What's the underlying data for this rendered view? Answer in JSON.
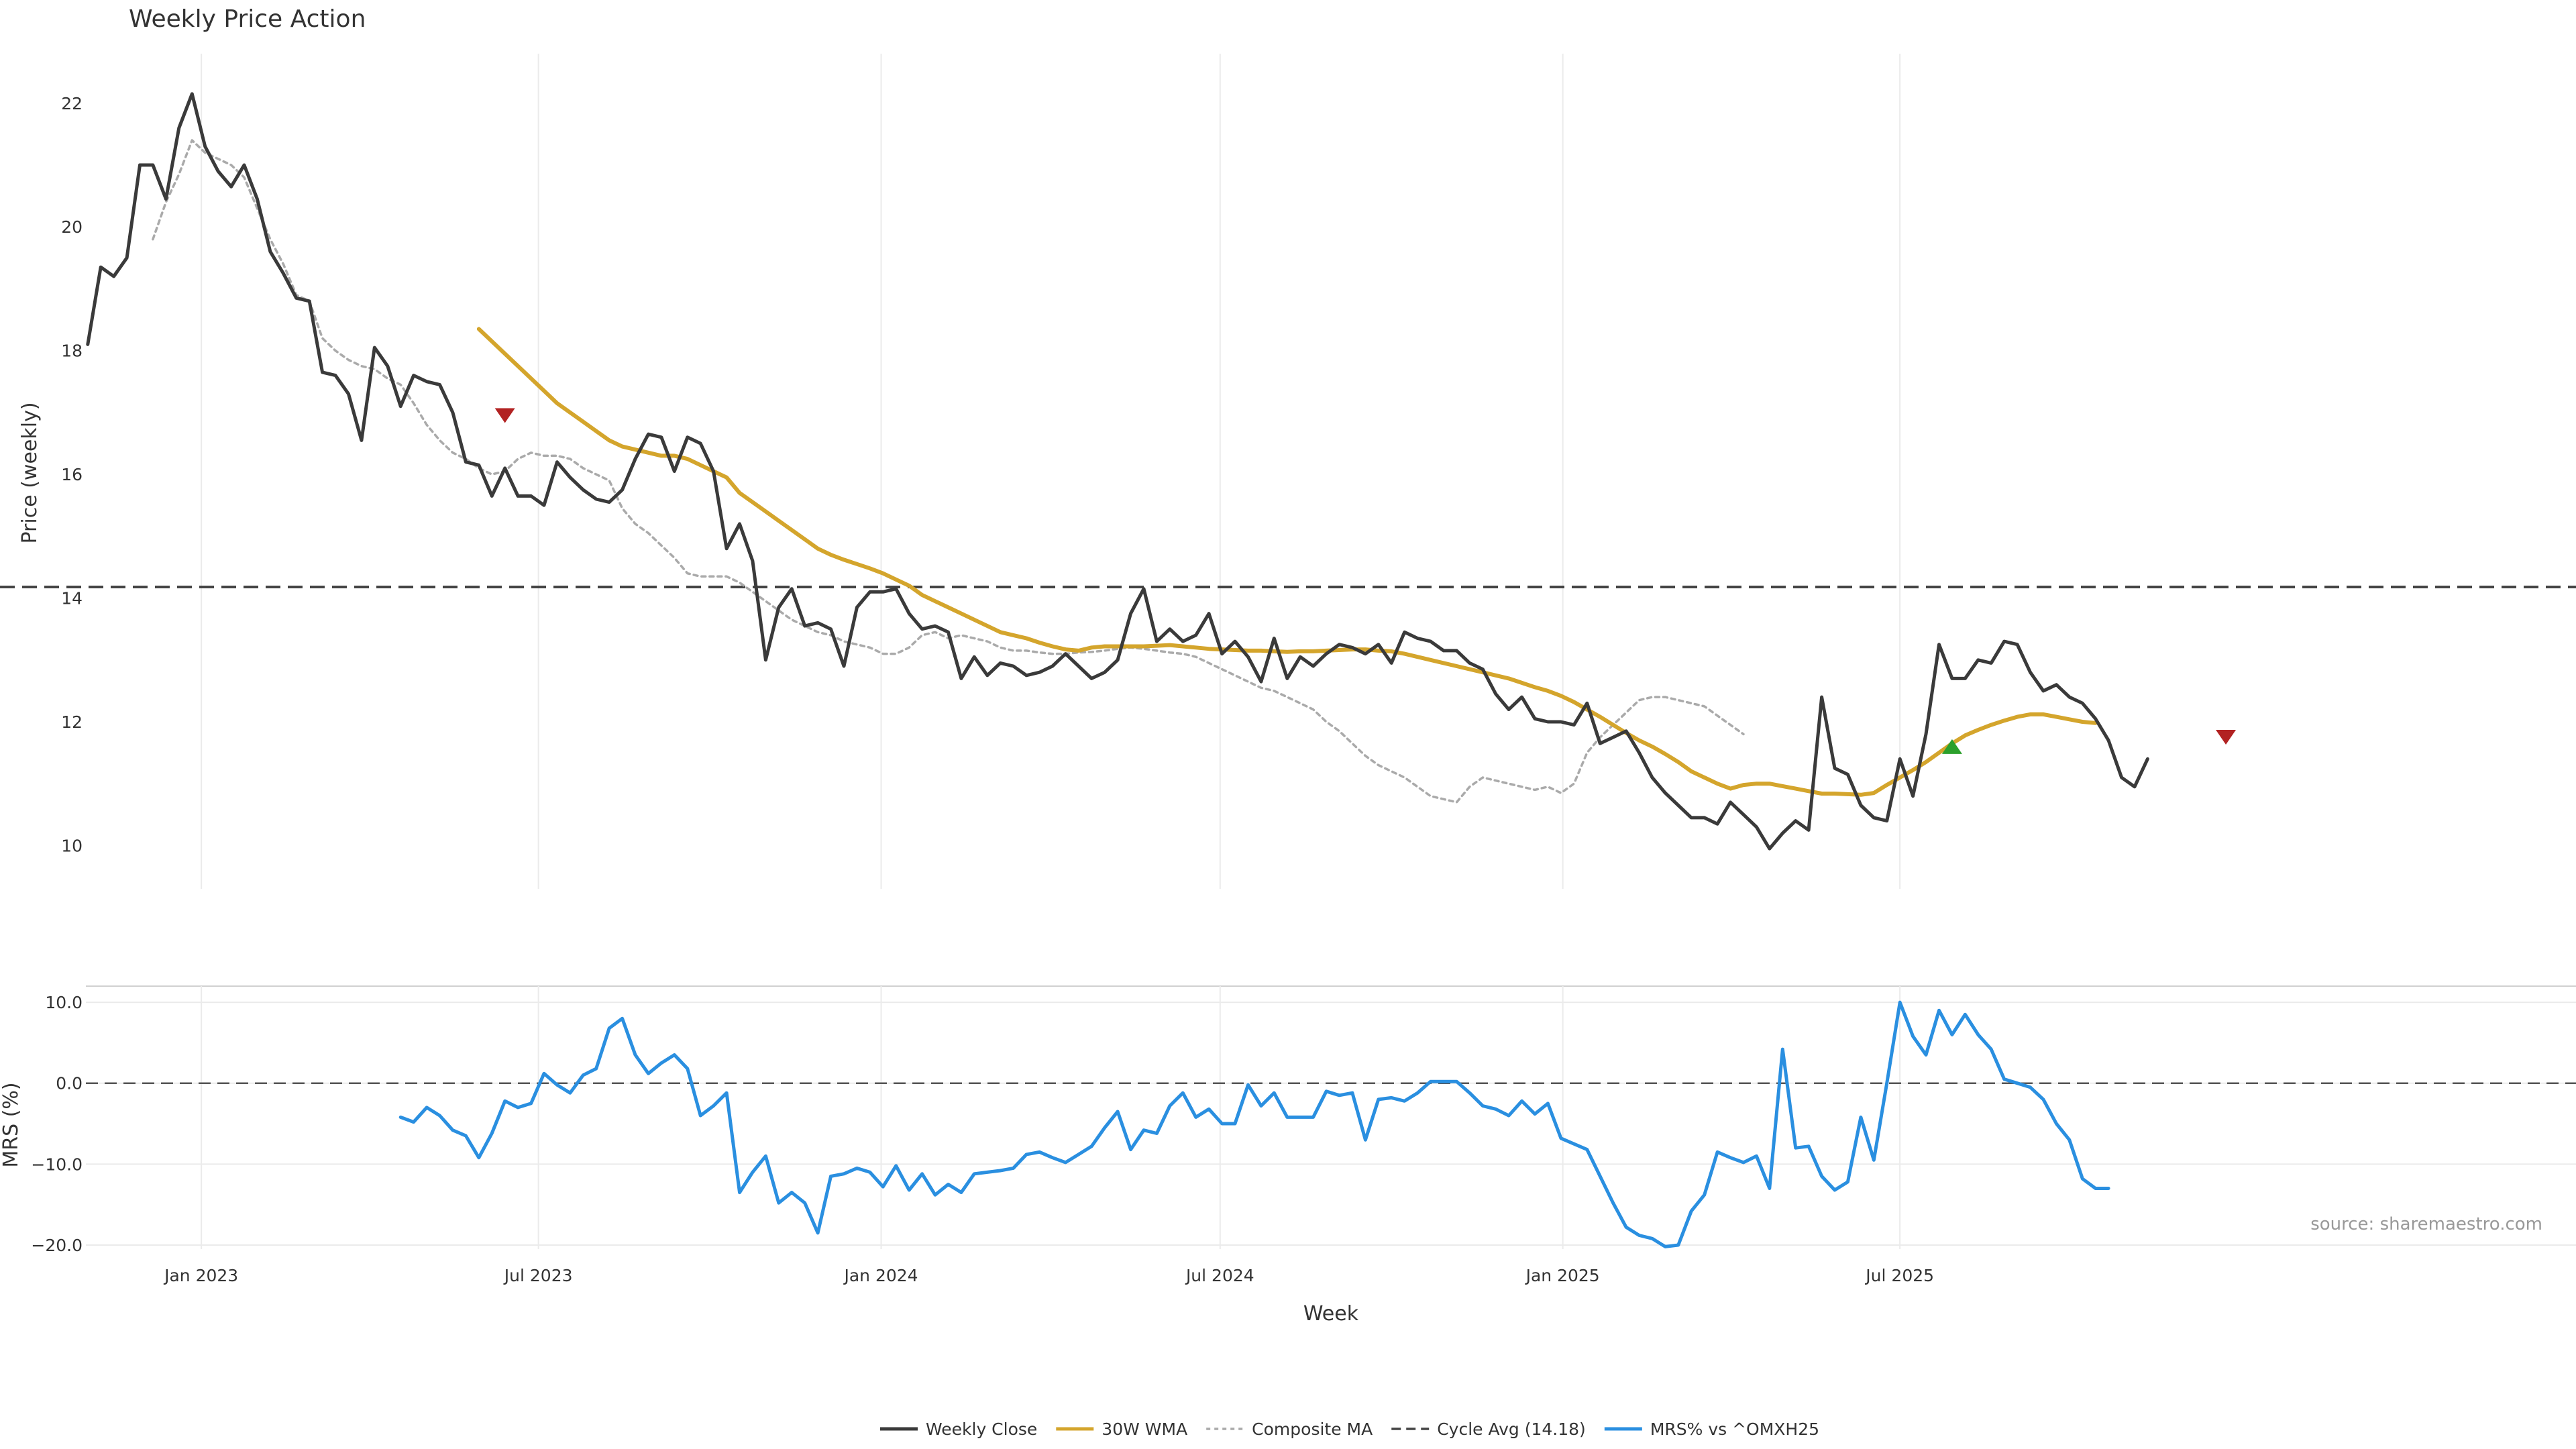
{
  "chart_data": {
    "type": "line",
    "title": "Weekly Price Action",
    "xlabel": "Week",
    "x_ticks": [
      {
        "date": "2023-01-01",
        "label": "Jan 2023"
      },
      {
        "date": "2023-07-01",
        "label": "Jul 2023"
      },
      {
        "date": "2024-01-01",
        "label": "Jan 2024"
      },
      {
        "date": "2024-07-01",
        "label": "Jul 2024"
      },
      {
        "date": "2025-01-01",
        "label": "Jan 2025"
      },
      {
        "date": "2025-07-01",
        "label": "Jul 2025"
      }
    ],
    "xlim": [
      "2022-10-31",
      "2026-06-29"
    ],
    "grid": true,
    "legend_position": "bottom-center",
    "source": "source: sharemaestro.com",
    "price_panel": {
      "ylabel": "Price (weekly)",
      "ylim": [
        9.3,
        22.8
      ],
      "y_ticks": [
        10,
        12,
        14,
        16,
        18,
        20,
        22
      ],
      "cycle_avg": 14.18,
      "series": [
        {
          "name": "Weekly Close",
          "color": "#3a3a3a",
          "style": "solid",
          "start": "2022-11-01",
          "step_days": 7,
          "values": [
            18.1,
            19.35,
            19.2,
            19.5,
            21.0,
            21.0,
            20.45,
            21.6,
            22.15,
            21.3,
            20.9,
            20.65,
            21.0,
            20.45,
            19.6,
            19.25,
            18.85,
            18.8,
            17.65,
            17.6,
            17.3,
            16.55,
            18.05,
            17.75,
            17.1,
            17.6,
            17.5,
            17.45,
            17.0,
            16.2,
            16.15,
            15.65,
            16.1,
            15.65,
            15.65,
            15.5,
            16.2,
            15.95,
            15.75,
            15.6,
            15.55,
            15.75,
            16.25,
            16.65,
            16.6,
            16.05,
            16.6,
            16.5,
            16.05,
            14.8,
            15.2,
            14.6,
            13.0,
            13.85,
            14.15,
            13.55,
            13.6,
            13.5,
            12.9,
            13.85,
            14.1,
            14.1,
            14.15,
            13.75,
            13.5,
            13.55,
            13.45,
            12.7,
            13.05,
            12.75,
            12.95,
            12.9,
            12.75,
            12.8,
            12.9,
            13.1,
            12.9,
            12.7,
            12.8,
            13.0,
            13.75,
            14.15,
            13.3,
            13.5,
            13.3,
            13.4,
            13.75,
            13.1,
            13.3,
            13.05,
            12.65,
            13.35,
            12.7,
            13.05,
            12.9,
            13.1,
            13.25,
            13.2,
            13.1,
            13.25,
            12.95,
            13.45,
            13.35,
            13.3,
            13.15,
            13.15,
            12.95,
            12.85,
            12.45,
            12.2,
            12.4,
            12.05,
            12.0,
            12.0,
            11.95,
            12.3,
            11.65,
            11.75,
            11.85,
            11.5,
            11.1,
            10.85,
            10.65,
            10.45,
            10.45,
            10.35,
            10.7,
            10.5,
            10.3,
            9.95,
            10.2,
            10.4,
            10.25,
            12.4,
            11.25,
            11.15,
            10.65,
            10.45,
            10.4,
            11.4,
            10.8,
            11.8,
            13.25,
            12.7,
            12.7,
            13.0,
            12.95,
            13.3,
            13.25,
            12.8,
            12.5,
            12.6,
            12.4,
            12.3,
            12.05,
            11.7,
            11.1,
            10.95,
            11.4
          ]
        },
        {
          "name": "30W WMA",
          "color": "#d4a52c",
          "style": "solid",
          "start": "2023-05-30",
          "step_days": 7,
          "values": [
            18.35,
            18.15,
            17.95,
            17.75,
            17.55,
            17.35,
            17.15,
            17.0,
            16.85,
            16.7,
            16.55,
            16.45,
            16.4,
            16.35,
            16.3,
            16.3,
            16.25,
            16.15,
            16.05,
            15.95,
            15.7,
            15.55,
            15.4,
            15.25,
            15.1,
            14.95,
            14.8,
            14.7,
            14.62,
            14.55,
            14.48,
            14.4,
            14.3,
            14.2,
            14.05,
            13.95,
            13.85,
            13.75,
            13.65,
            13.55,
            13.45,
            13.4,
            13.35,
            13.28,
            13.22,
            13.17,
            13.15,
            13.2,
            13.22,
            13.22,
            13.22,
            13.22,
            13.23,
            13.24,
            13.22,
            13.2,
            13.18,
            13.17,
            13.16,
            13.15,
            13.15,
            13.14,
            13.13,
            13.14,
            13.14,
            13.15,
            13.16,
            13.17,
            13.17,
            13.15,
            13.14,
            13.1,
            13.05,
            13.0,
            12.95,
            12.9,
            12.85,
            12.8,
            12.75,
            12.7,
            12.63,
            12.56,
            12.5,
            12.42,
            12.32,
            12.2,
            12.08,
            11.95,
            11.82,
            11.7,
            11.6,
            11.48,
            11.35,
            11.2,
            11.1,
            11.0,
            10.92,
            10.98,
            11.0,
            11.0,
            10.96,
            10.92,
            10.88,
            10.84,
            10.84,
            10.83,
            10.82,
            10.85,
            10.98,
            11.1,
            11.22,
            11.35,
            11.5,
            11.65,
            11.78,
            11.87,
            11.95,
            12.02,
            12.08,
            12.12,
            12.12,
            12.08,
            12.04,
            12.0,
            11.98
          ]
        },
        {
          "name": "Composite MA",
          "color": "#aaaaaa",
          "style": "dotted",
          "start": "2022-12-06",
          "step_days": 7,
          "values": [
            19.8,
            20.4,
            20.85,
            21.4,
            21.2,
            21.1,
            21.0,
            20.8,
            20.3,
            19.8,
            19.4,
            18.9,
            18.8,
            18.2,
            18.0,
            17.85,
            17.75,
            17.7,
            17.55,
            17.45,
            17.15,
            16.8,
            16.55,
            16.35,
            16.25,
            16.1,
            16.0,
            16.05,
            16.25,
            16.35,
            16.3,
            16.3,
            16.25,
            16.1,
            16.0,
            15.9,
            15.45,
            15.2,
            15.05,
            14.85,
            14.65,
            14.4,
            14.35,
            14.35,
            14.35,
            14.25,
            14.1,
            13.95,
            13.8,
            13.65,
            13.55,
            13.45,
            13.4,
            13.3,
            13.25,
            13.2,
            13.1,
            13.1,
            13.2,
            13.4,
            13.45,
            13.35,
            13.4,
            13.35,
            13.3,
            13.2,
            13.15,
            13.15,
            13.12,
            13.1,
            13.1,
            13.12,
            13.13,
            13.15,
            13.18,
            13.2,
            13.18,
            13.15,
            13.12,
            13.1,
            13.05,
            12.95,
            12.85,
            12.75,
            12.65,
            12.55,
            12.5,
            12.4,
            12.3,
            12.2,
            12.0,
            11.85,
            11.65,
            11.45,
            11.3,
            11.2,
            11.1,
            10.95,
            10.8,
            10.75,
            10.7,
            10.95,
            11.1,
            11.05,
            11.0,
            10.95,
            10.9,
            10.95,
            10.85,
            11.0,
            11.5,
            11.75,
            11.95,
            12.15,
            12.35,
            12.4,
            12.4,
            12.35,
            12.3,
            12.25,
            12.1,
            11.95,
            11.8
          ]
        }
      ],
      "markers": [
        {
          "type": "sell",
          "date": "2023-06-13",
          "y": 16.95,
          "color": "#b22222"
        },
        {
          "type": "buy",
          "date": "2025-07-29",
          "y": 11.6,
          "color": "#2ca02c"
        },
        {
          "type": "sell",
          "date": "2025-12-23",
          "y": 11.75,
          "color": "#b22222"
        }
      ]
    },
    "mrs_panel": {
      "ylabel": "MRS (%)",
      "ylim": [
        -20.5,
        12
      ],
      "y_ticks": [
        10.0,
        0.0,
        -10.0,
        -20.0
      ],
      "zero_line": 0,
      "series": [
        {
          "name": "MRS% vs ^OMXH25",
          "color": "#2a8fe0",
          "style": "solid",
          "start": "2023-04-18",
          "step_days": 7,
          "values": [
            -4.2,
            -4.8,
            -3.0,
            -4.0,
            -5.8,
            -6.5,
            -9.2,
            -6.2,
            -2.2,
            -3.0,
            -2.5,
            1.2,
            -0.2,
            -1.2,
            1.0,
            1.8,
            6.8,
            8.0,
            3.5,
            1.2,
            2.5,
            3.5,
            1.8,
            -4.0,
            -2.8,
            -1.2,
            -13.5,
            -11.0,
            -9.0,
            -14.8,
            -13.5,
            -14.8,
            -18.5,
            -11.5,
            -11.2,
            -10.5,
            -11.0,
            -12.8,
            -10.2,
            -13.2,
            -11.2,
            -13.8,
            -12.5,
            -13.5,
            -11.2,
            -11.0,
            -10.8,
            -10.5,
            -8.8,
            -8.5,
            -9.2,
            -9.8,
            -8.8,
            -7.8,
            -5.5,
            -3.5,
            -8.2,
            -5.8,
            -6.2,
            -2.8,
            -1.2,
            -4.2,
            -3.2,
            -5.0,
            -5.0,
            -0.2,
            -2.8,
            -1.2,
            -4.2,
            -4.2,
            -4.2,
            -1.0,
            -1.5,
            -1.2,
            -7.0,
            -2.0,
            -1.8,
            -2.2,
            -1.2,
            0.2,
            0.2,
            0.2,
            -1.2,
            -2.8,
            -3.2,
            -4.0,
            -2.2,
            -3.8,
            -2.5,
            -6.8,
            -7.5,
            -8.2,
            -11.5,
            -14.8,
            -17.8,
            -18.8,
            -19.2,
            -20.2,
            -20.0,
            -15.8,
            -13.8,
            -8.5,
            -9.2,
            -9.8,
            -9.0,
            -13.0,
            4.2,
            -8.0,
            -7.8,
            -11.5,
            -13.2,
            -12.2,
            -4.2,
            -9.5,
            0.0,
            10.0,
            5.8,
            3.5,
            9.0,
            6.0,
            8.5,
            6.0,
            4.2,
            0.5,
            0.0,
            -0.5,
            -2.0,
            -5.0,
            -7.0,
            -11.8,
            -13.0,
            -13.0
          ]
        }
      ]
    }
  }
}
